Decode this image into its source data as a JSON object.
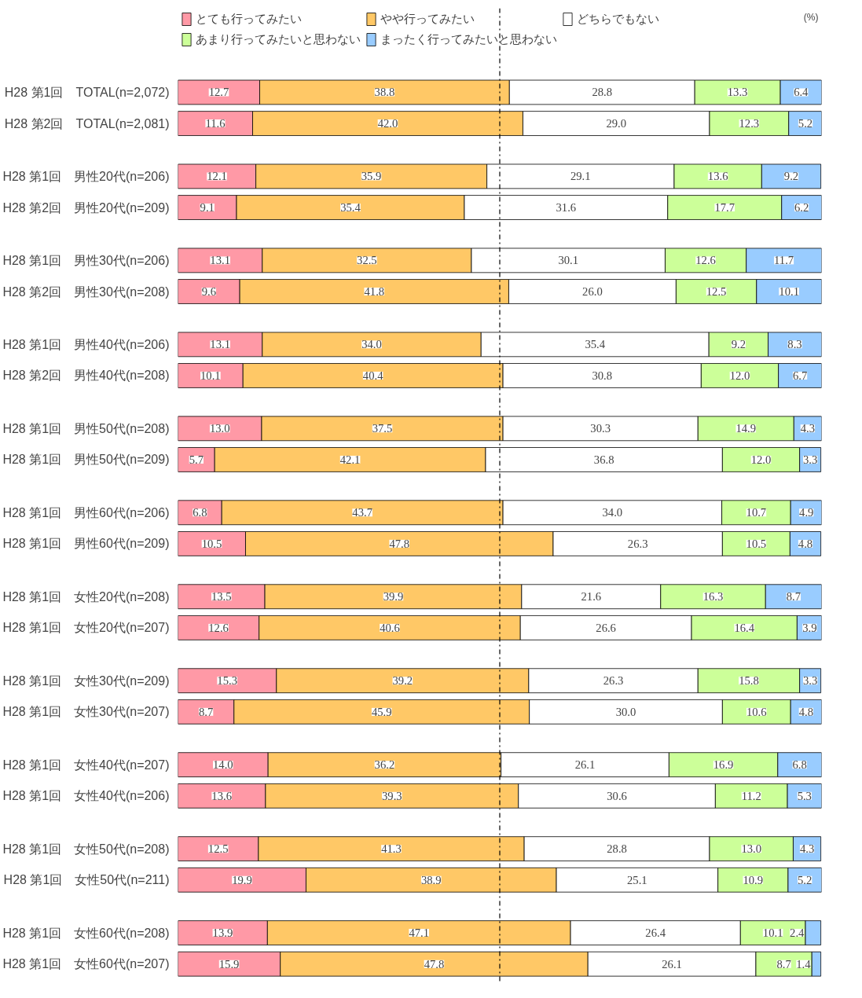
{
  "chart_data": {
    "type": "bar",
    "orientation": "horizontal",
    "stacked": true,
    "legend": "top",
    "grid": false,
    "tick_labels": "y",
    "xlim": [
      0,
      100
    ],
    "annotations": [
      "(%)"
    ],
    "ref_lines": [
      {
        "axis": "x",
        "value": 50,
        "line_style": "dashdot",
        "color": "#000000"
      }
    ],
    "categories": [
      "H28 第1回　TOTAL(n=2,072)",
      "H28 第2回　TOTAL(n=2,081)",
      "H28 第1回　男性20代(n=206)",
      "H28 第2回　男性20代(n=209)",
      "H28 第1回　男性30代(n=206)",
      "H28 第2回　男性30代(n=208)",
      "H28 第1回　男性40代(n=206)",
      "H28 第2回　男性40代(n=208)",
      "H28 第1回　男性50代(n=208)",
      "H28 第1回　男性50代(n=209)",
      "H28 第1回　男性60代(n=206)",
      "H28 第1回　男性60代(n=209)",
      "H28 第1回　女性20代(n=208)",
      "H28 第1回　女性20代(n=207)",
      "H28 第1回　女性30代(n=209)",
      "H28 第1回　女性30代(n=207)",
      "H28 第1回　女性40代(n=207)",
      "H28 第1回　女性40代(n=206)",
      "H28 第1回　女性50代(n=208)",
      "H28 第1回　女性50代(n=211)",
      "H28 第1回　女性60代(n=208)",
      "H28 第1回　女性60代(n=207)"
    ],
    "series": [
      {
        "name": "とても行ってみたい",
        "color": "#ff99a6",
        "values": [
          12.7,
          11.6,
          12.1,
          9.1,
          13.1,
          9.6,
          13.1,
          10.1,
          13.0,
          5.7,
          6.8,
          10.5,
          13.5,
          12.6,
          15.3,
          8.7,
          14.0,
          13.6,
          12.5,
          19.9,
          13.9,
          15.9
        ],
        "value_labels": [
          "12.7",
          "11.6",
          "12.1",
          "9.1",
          "13.1",
          "9.6",
          "13.1",
          "10.1",
          "13.0",
          "5.7",
          "6.8",
          "10.5",
          "13.5",
          "12.6",
          "15.3",
          "8.7",
          "14.0",
          "13.6",
          "12.5",
          "19.9",
          "13.9",
          "15.9"
        ]
      },
      {
        "name": "やや行ってみたい",
        "color": "#ffc866",
        "values": [
          38.8,
          42.0,
          35.9,
          35.4,
          32.5,
          41.8,
          34.0,
          40.4,
          37.5,
          42.1,
          43.7,
          47.8,
          39.9,
          40.6,
          39.2,
          45.9,
          36.2,
          39.3,
          41.3,
          38.9,
          47.1,
          47.8
        ],
        "value_labels": [
          "38.8",
          "42.0",
          "35.9",
          "35.4",
          "32.5",
          "41.8",
          "34.0",
          "40.4",
          "37.5",
          "42.1",
          "43.7",
          "47.8",
          "39.9",
          "40.6",
          "39.2",
          "45.9",
          "36.2",
          "39.3",
          "41.3",
          "38.9",
          "47.1",
          "47.8"
        ]
      },
      {
        "name": "どちらでもない",
        "color": "#ffffff",
        "values": [
          28.8,
          29.0,
          29.1,
          31.6,
          30.1,
          26.0,
          35.4,
          30.8,
          30.3,
          36.8,
          34.0,
          26.3,
          21.6,
          26.6,
          26.3,
          30.0,
          26.1,
          30.6,
          28.8,
          25.1,
          26.4,
          26.1
        ],
        "value_labels": [
          "28.8",
          "29.0",
          "29.1",
          "31.6",
          "30.1",
          "26.0",
          "35.4",
          "30.8",
          "30.3",
          "36.8",
          "34.0",
          "26.3",
          "21.6",
          "26.6",
          "26.3",
          "30.0",
          "26.1",
          "30.6",
          "28.8",
          "25.1",
          "26.4",
          "26.1"
        ]
      },
      {
        "name": "あまり行ってみたいと思わない",
        "color": "#ccff99",
        "values": [
          13.3,
          12.3,
          13.6,
          17.7,
          12.6,
          12.5,
          9.2,
          12.0,
          14.9,
          12.0,
          10.7,
          10.5,
          16.3,
          16.4,
          15.8,
          10.6,
          16.9,
          11.2,
          13.0,
          10.9,
          10.1,
          8.7
        ],
        "value_labels": [
          "13.3",
          "12.3",
          "13.6",
          "17.7",
          "12.6",
          "12.5",
          "9.2",
          "12.0",
          "14.9",
          "12.0",
          "10.7",
          "10.5",
          "16.3",
          "16.4",
          "15.8",
          "10.6",
          "16.9",
          "11.2",
          "13.0",
          "10.9",
          "10.1",
          "8.7"
        ]
      },
      {
        "name": "まったく行ってみたいと思わない",
        "color": "#99ccff",
        "values": [
          6.4,
          5.2,
          9.2,
          6.2,
          11.7,
          10.1,
          8.3,
          6.7,
          4.3,
          3.3,
          4.9,
          4.8,
          8.7,
          3.9,
          3.3,
          4.8,
          6.8,
          5.3,
          4.3,
          5.2,
          2.4,
          1.4
        ],
        "value_labels": [
          "6.4",
          "5.2",
          "9.2",
          "6.2",
          "11.7",
          "10.1",
          "8.3",
          "6.7",
          "4.3",
          "3.3",
          "4.9",
          "4.8",
          "8.7",
          "3.9",
          "3.3",
          "4.8",
          "6.8",
          "5.3",
          "4.3",
          "5.2",
          "2.4",
          "1.4"
        ]
      }
    ]
  }
}
